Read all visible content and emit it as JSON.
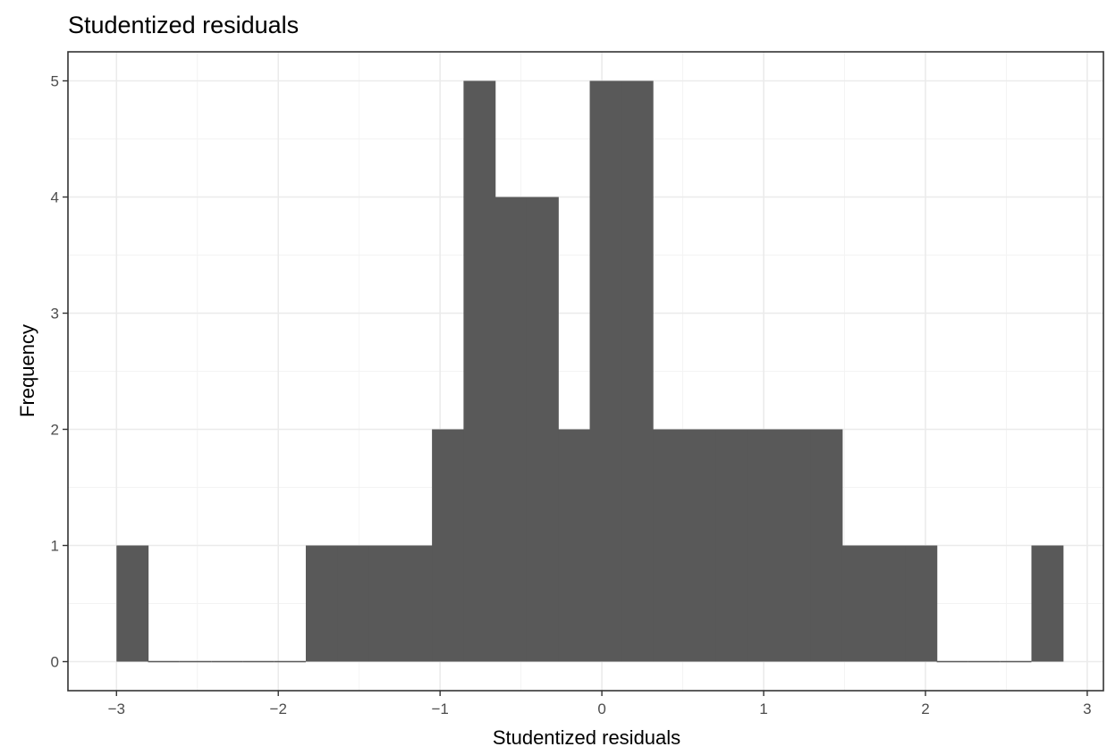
{
  "chart_data": {
    "type": "bar",
    "title": "Studentized residuals",
    "xlabel": "Studentized residuals",
    "ylabel": "Frequency",
    "xlim": [
      -3.3,
      3.1
    ],
    "ylim": [
      -0.25,
      5.25
    ],
    "x_ticks": [
      -3,
      -2,
      -1,
      0,
      1,
      2,
      3
    ],
    "x_tick_labels": [
      "−3",
      "−2",
      "−1",
      "0",
      "1",
      "2",
      "3"
    ],
    "y_ticks": [
      0,
      1,
      2,
      3,
      4,
      5
    ],
    "y_tick_labels": [
      "0",
      "1",
      "2",
      "3",
      "4",
      "5"
    ],
    "bin_width": 0.195,
    "bin_start": -3.0,
    "counts": [
      1,
      0,
      0,
      0,
      0,
      0,
      1,
      1,
      1,
      1,
      2,
      5,
      4,
      4,
      2,
      5,
      5,
      2,
      2,
      2,
      2,
      2,
      2,
      1,
      1,
      1,
      0,
      0,
      0,
      1
    ],
    "grid": true,
    "bar_color": "#595959",
    "panel_border_color": "#333333",
    "grid_color": "#ebebeb"
  }
}
